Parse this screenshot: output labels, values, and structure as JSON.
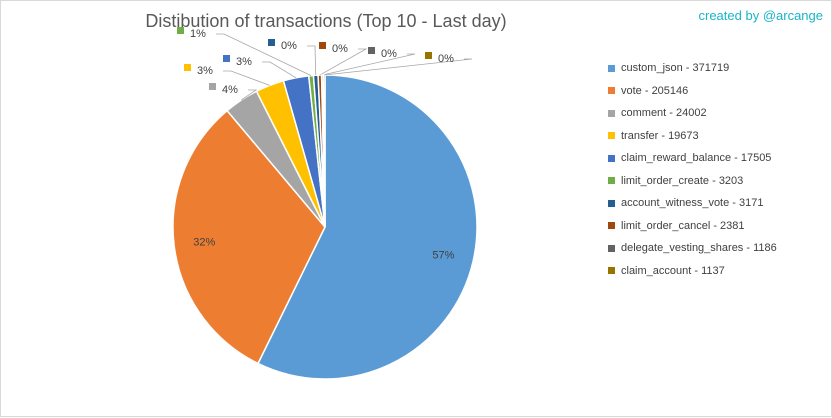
{
  "chart_data": {
    "type": "pie",
    "title": "Distibution of transactions (Top 10 - Last day)",
    "credit": "created by @arcange",
    "legend_position": "right",
    "slices": [
      {
        "name": "custom_json",
        "value": 371719,
        "label": "57%",
        "color": "#5b9bd5"
      },
      {
        "name": "vote",
        "value": 205146,
        "label": "32%",
        "color": "#ed7d31"
      },
      {
        "name": "comment",
        "value": 24002,
        "label": "4%",
        "color": "#a5a5a5"
      },
      {
        "name": "transfer",
        "value": 19673,
        "label": "3%",
        "color": "#ffc000"
      },
      {
        "name": "claim_reward_balance",
        "value": 17505,
        "label": "3%",
        "color": "#4472c4"
      },
      {
        "name": "limit_order_create",
        "value": 3203,
        "label": "1%",
        "color": "#70ad47"
      },
      {
        "name": "account_witness_vote",
        "value": 3171,
        "label": "0%",
        "color": "#255e91"
      },
      {
        "name": "limit_order_cancel",
        "value": 2381,
        "label": "0%",
        "color": "#9e480e"
      },
      {
        "name": "delegate_vesting_shares",
        "value": 1186,
        "label": "0%",
        "color": "#636363"
      },
      {
        "name": "claim_account",
        "value": 1137,
        "label": "0%",
        "color": "#997300"
      }
    ],
    "legend": [
      "custom_json - 371719",
      "vote - 205146",
      "comment - 24002",
      "transfer - 19673",
      "claim_reward_balance - 17505",
      "limit_order_create - 3203",
      "account_witness_vote - 3171",
      "limit_order_cancel - 2381",
      "delegate_vesting_shares - 1186",
      "claim_account - 1137"
    ]
  }
}
